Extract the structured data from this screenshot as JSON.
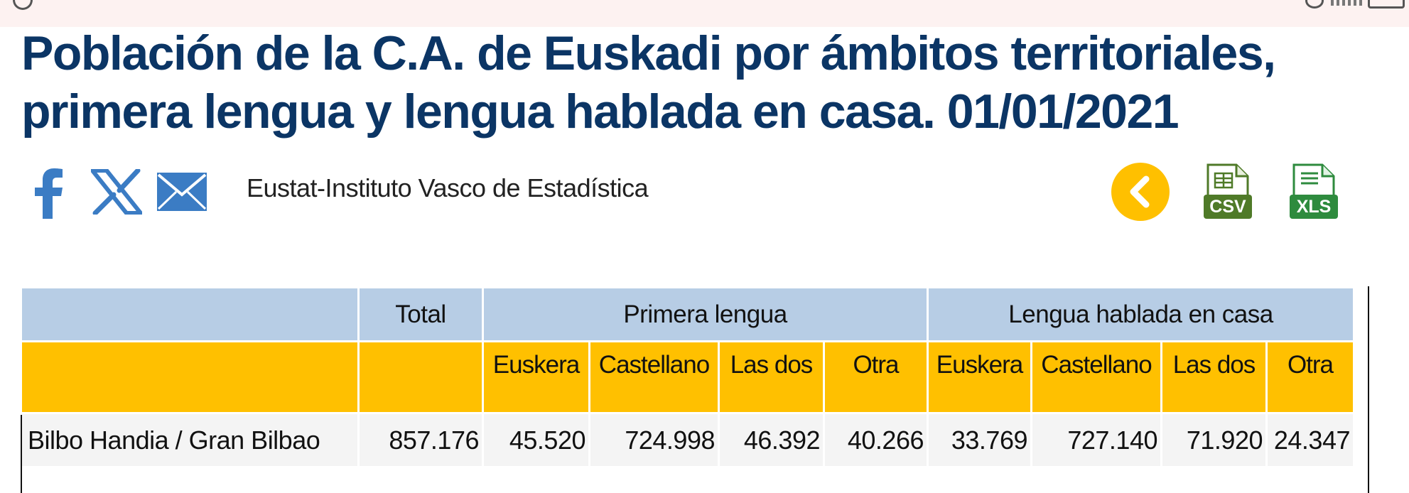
{
  "page": {
    "title": "Población de la C.A. de Euskadi por ámbitos territoriales, primera lengua y lengua hablada en casa. 01/01/2021",
    "source": "Eustat-Instituto Vasco de Estadística"
  },
  "share": {
    "facebook_icon": "facebook-icon",
    "x_icon": "x-icon",
    "mail_icon": "mail-icon"
  },
  "actions": {
    "back_icon": "chevron-left-icon",
    "csv_label": "CSV",
    "xls_label": "XLS"
  },
  "colors": {
    "title": "#0b3565",
    "header_blue": "#b7cde5",
    "header_yellow": "#ffc000",
    "back_button": "#ffc000",
    "download_green": "#2e7d32",
    "share_blue": "#3b7cc4"
  },
  "table": {
    "group_headers": {
      "total": "Total",
      "primera_lengua": "Primera lengua",
      "lengua_hablada": "Lengua hablada en casa"
    },
    "sub_headers": [
      "Euskera",
      "Castellano",
      "Las dos",
      "Otra",
      "Euskera",
      "Castellano",
      "Las dos",
      "Otra"
    ],
    "rows": [
      {
        "label": "Bilbo Handia / Gran Bilbao",
        "values": [
          "857.176",
          "45.520",
          "724.998",
          "46.392",
          "40.266",
          "33.769",
          "727.140",
          "71.920",
          "24.347"
        ]
      }
    ]
  }
}
